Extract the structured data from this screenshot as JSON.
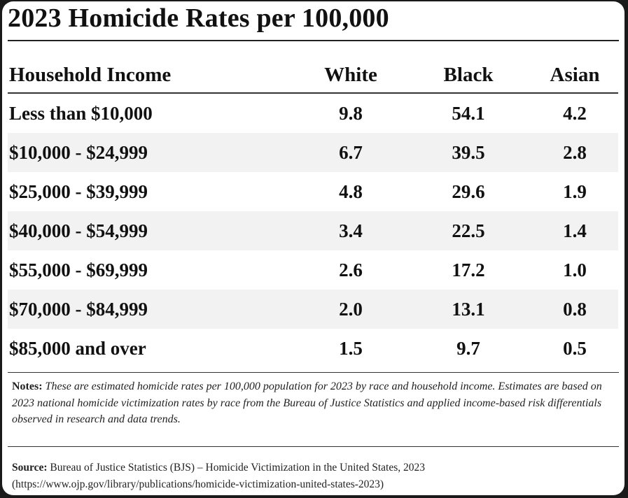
{
  "title": "2023 Homicide Rates per 100,000",
  "table": {
    "headers": [
      "Household Income",
      "White",
      "Black",
      "Asian"
    ],
    "rows": [
      [
        "Less than $10,000",
        "9.8",
        "54.1",
        "4.2"
      ],
      [
        "$10,000 - $24,999",
        "6.7",
        "39.5",
        "2.8"
      ],
      [
        "$25,000 - $39,999",
        "4.8",
        "29.6",
        "1.9"
      ],
      [
        "$40,000 - $54,999",
        "3.4",
        "22.5",
        "1.4"
      ],
      [
        "$55,000 - $69,999",
        "2.6",
        "17.2",
        "1.0"
      ],
      [
        "$70,000 - $84,999",
        "2.0",
        "13.1",
        "0.8"
      ],
      [
        "$85,000 and over",
        "1.5",
        "9.7",
        "0.5"
      ]
    ]
  },
  "notes": {
    "label": "Notes:",
    "text": "These are estimated homicide rates per 100,000 population for 2023 by race and household income. Estimates are based on 2023 national homicide victimization rates by race from the Bureau of Justice Statistics and applied income-based risk differentials observed in research and data trends."
  },
  "source": {
    "label": "Source:",
    "text": "Bureau of Justice Statistics (BJS) – Homicide Victimization in the United States, 2023",
    "url": "(https://www.ojp.gov/library/publications/homicide-victimization-united-states-2023)"
  }
}
